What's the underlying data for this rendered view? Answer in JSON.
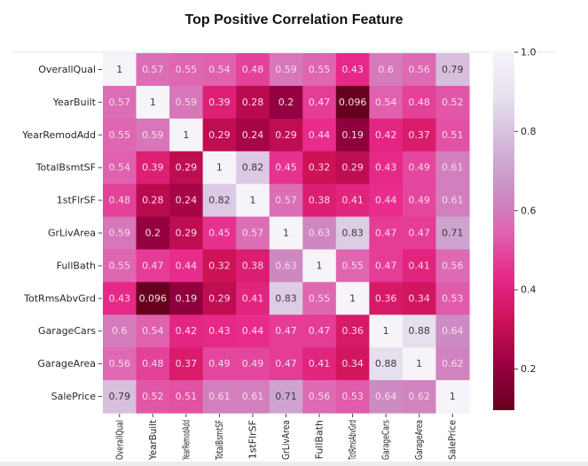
{
  "chart_data": {
    "type": "heatmap",
    "title": "Top Positive Correlation Feature",
    "xlabel": "",
    "ylabel": "",
    "colormap": "PuRd_r",
    "colormap_stops": [
      "#67001f",
      "#980043",
      "#ce1256",
      "#e7298a",
      "#df65b0",
      "#c994c7",
      "#d4b9da",
      "#e7e1ef",
      "#f7f4f9"
    ],
    "x_tick_labels": [
      "OverallQual",
      "YearBuilt",
      "YearRemodAdd",
      "TotalBsmtSF",
      "1stFlrSF",
      "GrLivArea",
      "FullBath",
      "TotRmsAbvGrd",
      "GarageCars",
      "GarageArea",
      "SalePrice"
    ],
    "y_tick_labels": [
      "OverallQual",
      "YearBuilt",
      "YearRemodAdd",
      "TotalBsmtSF",
      "1stFlrSF",
      "GrLivArea",
      "FullBath",
      "TotRmsAbvGrd",
      "GarageCars",
      "GarageArea",
      "SalePrice"
    ],
    "values": [
      [
        "1",
        "0.57",
        "0.55",
        "0.54",
        "0.48",
        "0.59",
        "0.55",
        "0.43",
        "0.6",
        "0.56",
        "0.79"
      ],
      [
        "0.57",
        "1",
        "0.59",
        "0.39",
        "0.28",
        "0.2",
        "0.47",
        "0.096",
        "0.54",
        "0.48",
        "0.52"
      ],
      [
        "0.55",
        "0.59",
        "1",
        "0.29",
        "0.24",
        "0.29",
        "0.44",
        "0.19",
        "0.42",
        "0.37",
        "0.51"
      ],
      [
        "0.54",
        "0.39",
        "0.29",
        "1",
        "0.82",
        "0.45",
        "0.32",
        "0.29",
        "0.43",
        "0.49",
        "0.61"
      ],
      [
        "0.48",
        "0.28",
        "0.24",
        "0.82",
        "1",
        "0.57",
        "0.38",
        "0.41",
        "0.44",
        "0.49",
        "0.61"
      ],
      [
        "0.59",
        "0.2",
        "0.29",
        "0.45",
        "0.57",
        "1",
        "0.63",
        "0.83",
        "0.47",
        "0.47",
        "0.71"
      ],
      [
        "0.55",
        "0.47",
        "0.44",
        "0.32",
        "0.38",
        "0.63",
        "1",
        "0.55",
        "0.47",
        "0.41",
        "0.56"
      ],
      [
        "0.43",
        "0.096",
        "0.19",
        "0.29",
        "0.41",
        "0.83",
        "0.55",
        "1",
        "0.36",
        "0.34",
        "0.53"
      ],
      [
        "0.6",
        "0.54",
        "0.42",
        "0.43",
        "0.44",
        "0.47",
        "0.47",
        "0.36",
        "1",
        "0.88",
        "0.64"
      ],
      [
        "0.56",
        "0.48",
        "0.37",
        "0.49",
        "0.49",
        "0.47",
        "0.41",
        "0.34",
        "0.88",
        "1",
        "0.62"
      ],
      [
        "0.79",
        "0.52",
        "0.51",
        "0.61",
        "0.61",
        "0.71",
        "0.56",
        "0.53",
        "0.64",
        "0.62",
        "1"
      ]
    ],
    "colorbar": {
      "range": [
        0.096,
        1.0
      ],
      "ticks": [
        "0.2",
        "0.4",
        "0.6",
        "0.8",
        "1.0"
      ],
      "position": "right"
    },
    "annotations_on": true,
    "grid": false
  }
}
